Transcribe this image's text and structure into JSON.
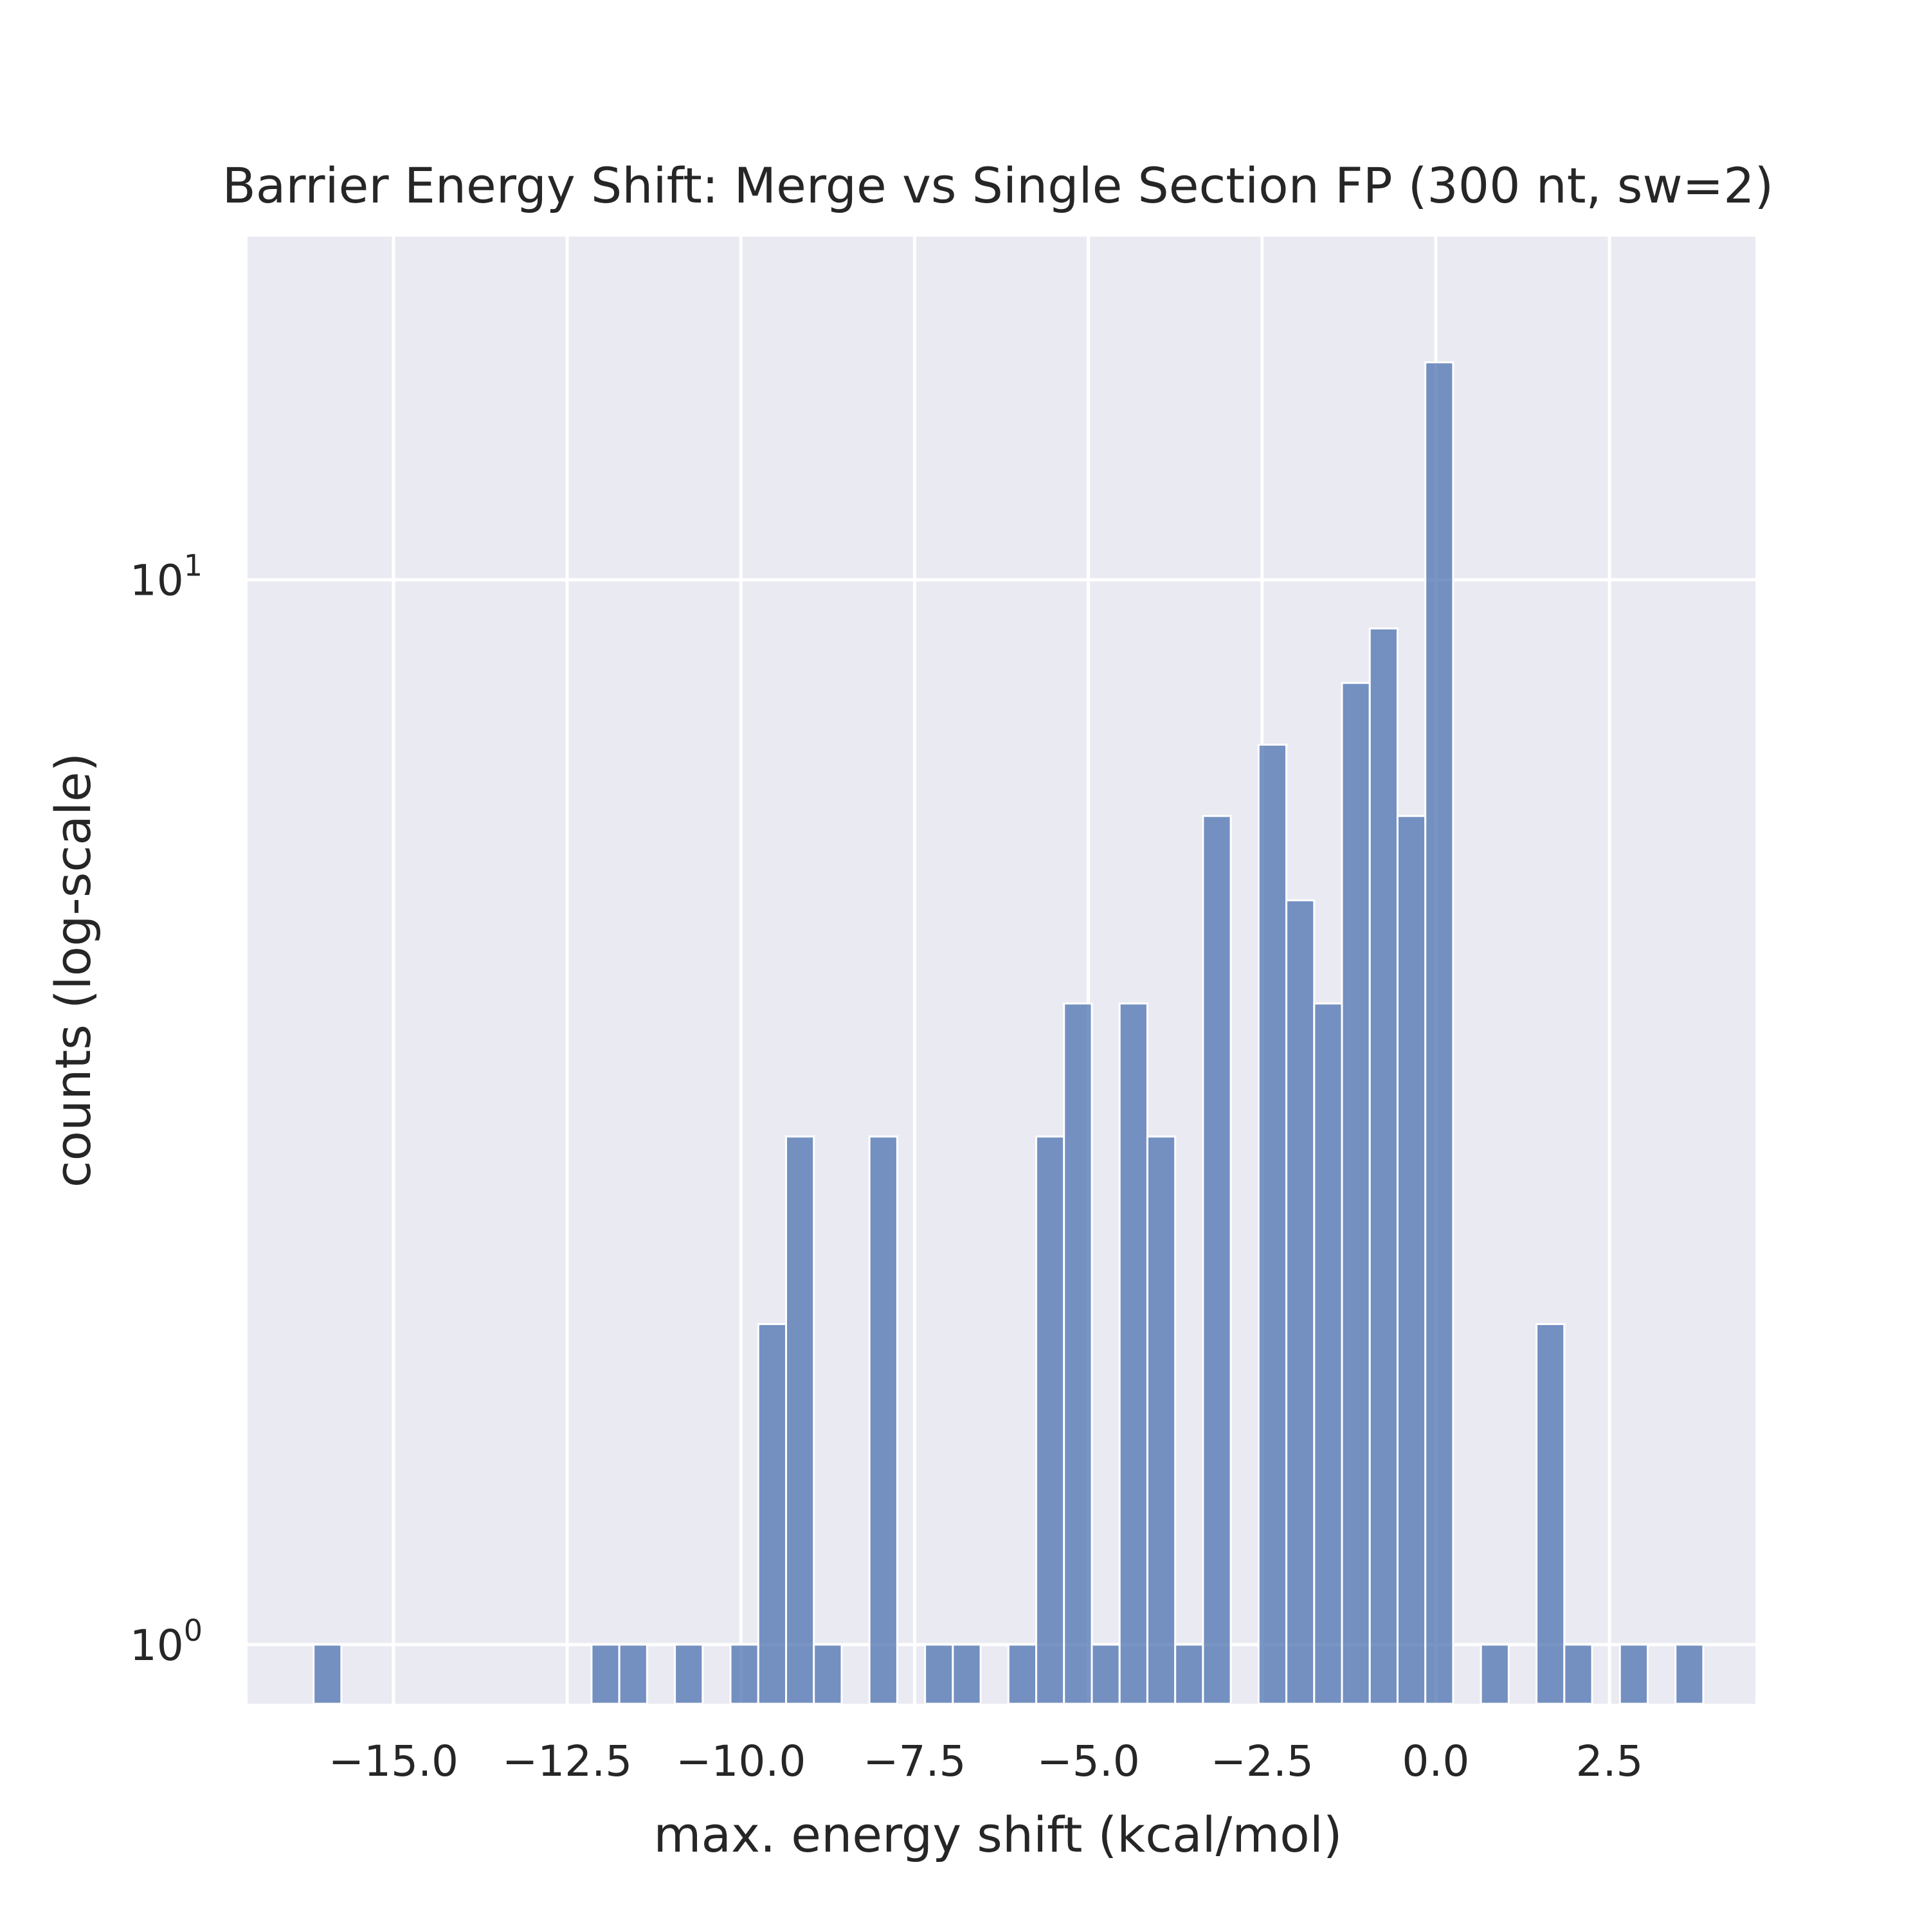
{
  "chart_data": {
    "type": "bar",
    "title": "Barrier Energy Shift: Merge vs Single Section FP (300 nt, sw=2)",
    "xlabel": "max. energy shift (kcal/mol)",
    "ylabel": "counts (log-scale)",
    "x_scale": "linear",
    "y_scale": "log",
    "xlim": [
      -17.1,
      4.6
    ],
    "ylim": [
      0.88,
      21
    ],
    "grid": true,
    "bin_width": 0.4,
    "x_ticks": [
      {
        "value": -15.0,
        "label": "−15.0"
      },
      {
        "value": -12.5,
        "label": "−12.5"
      },
      {
        "value": -10.0,
        "label": "−10.0"
      },
      {
        "value": -7.5,
        "label": "−7.5"
      },
      {
        "value": -5.0,
        "label": "−5.0"
      },
      {
        "value": -2.5,
        "label": "−2.5"
      },
      {
        "value": 0.0,
        "label": "0.0"
      },
      {
        "value": 2.5,
        "label": "2.5"
      }
    ],
    "y_ticks": [
      {
        "value": 1,
        "base": "10",
        "exponent": "0"
      },
      {
        "value": 10,
        "base": "10",
        "exponent": "1"
      }
    ],
    "color": "#4c72b0",
    "background": "#eaeaf2",
    "bins": [
      {
        "x0": -16.15,
        "x1": -15.75,
        "count": 1
      },
      {
        "x0": -12.15,
        "x1": -11.75,
        "count": 1
      },
      {
        "x0": -11.75,
        "x1": -11.35,
        "count": 1
      },
      {
        "x0": -10.95,
        "x1": -10.55,
        "count": 1
      },
      {
        "x0": -10.15,
        "x1": -9.75,
        "count": 1
      },
      {
        "x0": -9.75,
        "x1": -9.35,
        "count": 2
      },
      {
        "x0": -9.35,
        "x1": -8.95,
        "count": 3
      },
      {
        "x0": -8.95,
        "x1": -8.55,
        "count": 1
      },
      {
        "x0": -8.15,
        "x1": -7.75,
        "count": 3
      },
      {
        "x0": -7.35,
        "x1": -6.95,
        "count": 1
      },
      {
        "x0": -6.95,
        "x1": -6.55,
        "count": 1
      },
      {
        "x0": -6.15,
        "x1": -5.75,
        "count": 1
      },
      {
        "x0": -5.75,
        "x1": -5.35,
        "count": 3
      },
      {
        "x0": -5.35,
        "x1": -4.95,
        "count": 4
      },
      {
        "x0": -4.95,
        "x1": -4.55,
        "count": 1
      },
      {
        "x0": -4.55,
        "x1": -4.15,
        "count": 4
      },
      {
        "x0": -4.15,
        "x1": -3.75,
        "count": 3
      },
      {
        "x0": -3.75,
        "x1": -3.35,
        "count": 1
      },
      {
        "x0": -3.35,
        "x1": -2.95,
        "count": 6
      },
      {
        "x0": -2.55,
        "x1": -2.15,
        "count": 7
      },
      {
        "x0": -2.15,
        "x1": -1.75,
        "count": 5
      },
      {
        "x0": -1.75,
        "x1": -1.35,
        "count": 4
      },
      {
        "x0": -1.35,
        "x1": -0.95,
        "count": 8
      },
      {
        "x0": -0.95,
        "x1": -0.55,
        "count": 9
      },
      {
        "x0": -0.55,
        "x1": -0.15,
        "count": 6
      },
      {
        "x0": -0.15,
        "x1": 0.25,
        "count": 16
      },
      {
        "x0": 0.65,
        "x1": 1.05,
        "count": 1
      },
      {
        "x0": 1.45,
        "x1": 1.85,
        "count": 2
      },
      {
        "x0": 1.85,
        "x1": 2.25,
        "count": 1
      },
      {
        "x0": 2.65,
        "x1": 3.05,
        "count": 1
      },
      {
        "x0": 3.45,
        "x1": 3.85,
        "count": 1
      }
    ]
  }
}
